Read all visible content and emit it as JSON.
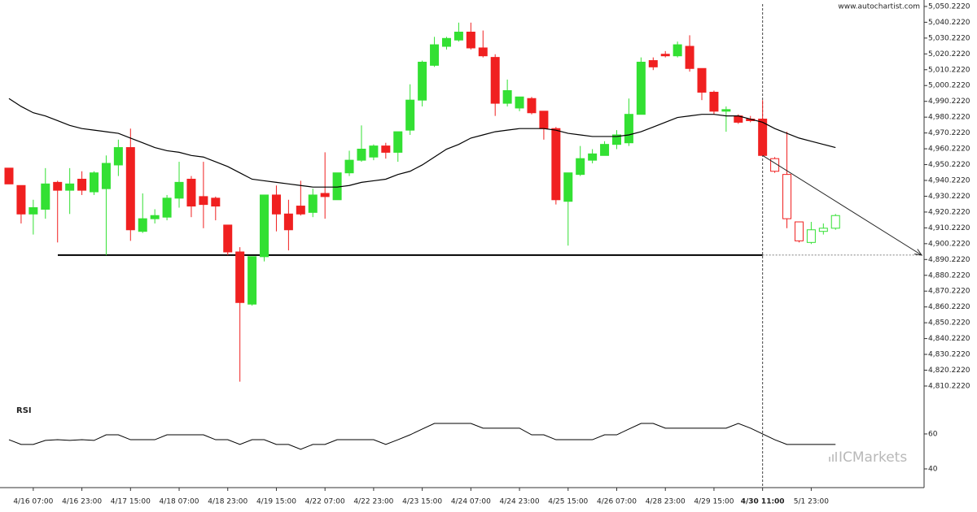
{
  "watermark": "www.autochartist.com",
  "logo": "ICMarkets",
  "chart_data": [
    {
      "type": "candlestick",
      "categories": [
        null,
        null,
        "4/16 07:00",
        null,
        null,
        null,
        "4/16 23:00",
        null,
        null,
        null,
        "4/17 15:00",
        null,
        null,
        null,
        "4/18 07:00",
        null,
        null,
        null,
        "4/18 23:00",
        null,
        null,
        null,
        "4/19 15:00",
        null,
        null,
        null,
        "4/22 07:00",
        null,
        null,
        null,
        "4/22 23:00",
        null,
        null,
        null,
        "4/23 15:00",
        null,
        null,
        null,
        "4/24 07:00",
        null,
        null,
        null,
        "4/24 23:00",
        null,
        null,
        null,
        "4/25 15:00",
        null,
        null,
        null,
        "4/26 07:00",
        null,
        null,
        null,
        "4/28 23:00",
        null,
        null,
        null,
        "4/29 15:00",
        null,
        null,
        null,
        "4/30 11:00",
        null,
        null,
        null,
        "5/1 23:00",
        null,
        null
      ],
      "open": [
        4948,
        4937,
        4919,
        4922,
        4939,
        4934,
        4941,
        4933,
        4935,
        4950,
        4961,
        4908,
        4916,
        4917,
        4929,
        4941,
        4930,
        4929,
        4912,
        4895,
        4862,
        4892,
        4931,
        4919,
        4924,
        4920,
        4932,
        4928,
        4945,
        4953,
        4955,
        4962,
        4958,
        4972,
        4991,
        5013,
        5025,
        5029,
        5034,
        5024,
        5018,
        4989,
        4986,
        4992,
        4984,
        4973,
        4927,
        4944,
        4953,
        4956,
        4963,
        4964,
        4982,
        5016,
        5020,
        5019,
        5025,
        5011,
        4996,
        4984,
        4981,
        4979,
        4979,
        4954,
        4944,
        4914,
        4901,
        4908,
        4910
      ],
      "high": [
        4948,
        4937,
        4928,
        4948,
        4940,
        4948,
        4946,
        4946,
        4956,
        4966,
        4973,
        4932,
        4922,
        4931,
        4952,
        4943,
        4952,
        4930,
        4912,
        4898,
        4892,
        4931,
        4937,
        4928,
        4940,
        4935,
        4958,
        4945,
        4959,
        4975,
        4963,
        4964,
        4971,
        5001,
        5016,
        5031,
        5031,
        5040,
        5040,
        5035,
        5020,
        5004,
        4993,
        4993,
        4984,
        4974,
        4945,
        4962,
        4960,
        4965,
        4972,
        4992,
        5018,
        5018,
        5022,
        5028,
        5032,
        5011,
        4997,
        4987,
        4982,
        4981,
        4991,
        4955,
        4971,
        4914,
        4914,
        4913,
        4919
      ],
      "low": [
        4938,
        4913,
        4906,
        4916,
        4901,
        4919,
        4931,
        4931,
        4893,
        4943,
        4902,
        4907,
        4913,
        4915,
        4923,
        4917,
        4910,
        4915,
        4893,
        4813,
        4861,
        4889,
        4908,
        4896,
        4918,
        4917,
        4916,
        4928,
        4943,
        4952,
        4953,
        4954,
        4952,
        4969,
        4987,
        5012,
        5023,
        5028,
        5023,
        5018,
        4981,
        4987,
        4984,
        4982,
        4966,
        4925,
        4899,
        4943,
        4951,
        4956,
        4960,
        4962,
        4982,
        5010,
        5018,
        5018,
        5009,
        4991,
        4982,
        4971,
        4976,
        4977,
        4956,
        4945,
        4910,
        4901,
        4900,
        4906,
        4909
      ],
      "close": [
        4938,
        4919,
        4923,
        4938,
        4934,
        4938,
        4934,
        4945,
        4951,
        4961,
        4909,
        4916,
        4918,
        4929,
        4939,
        4924,
        4925,
        4924,
        4895,
        4863,
        4892,
        4931,
        4919,
        4909,
        4919,
        4931,
        4930,
        4945,
        4953,
        4960,
        4962,
        4958,
        4971,
        4991,
        5015,
        5026,
        5030,
        5034,
        5024,
        5019,
        4989,
        4997,
        4993,
        4983,
        4973,
        4928,
        4945,
        4954,
        4957,
        4963,
        4969,
        4982,
        5015,
        5012,
        5019,
        5026,
        5011,
        4996,
        4984,
        4985,
        4977,
        4978,
        4956,
        4946,
        4916,
        4902,
        4909,
        4910,
        4918
      ],
      "moving_average": [
        4992,
        4987,
        4983,
        4981,
        4978,
        4975,
        4973,
        4972,
        4971,
        4970,
        4967,
        4964,
        4961,
        4959,
        4958,
        4956,
        4955,
        4952,
        4949,
        4945,
        4941,
        4940,
        4939,
        4938,
        4937,
        4936,
        4936,
        4936,
        4937,
        4939,
        4940,
        4941,
        4944,
        4946,
        4950,
        4955,
        4960,
        4963,
        4967,
        4969,
        4971,
        4972,
        4973,
        4973,
        4973,
        4972,
        4970,
        4969,
        4968,
        4968,
        4968,
        4969,
        4971,
        4974,
        4977,
        4980,
        4981,
        4982,
        4982,
        4981,
        4981,
        4979,
        4977,
        4973,
        4970,
        4967,
        4965,
        4963,
        4961
      ],
      "support_level": 4893,
      "hollow_from_category": "4/30 11:00",
      "up_color": "#33e033",
      "down_color": "#f02020",
      "line_color": "#000000",
      "ylim": [
        4802.5,
        5054.3
      ],
      "yticks": [
        {
          "value": 4810.222,
          "label": "4,810.2220"
        },
        {
          "value": 4820.222,
          "label": "4,820.2220"
        },
        {
          "value": 4830.222,
          "label": "4,830.2220"
        },
        {
          "value": 4840.222,
          "label": "4,840.2220"
        },
        {
          "value": 4850.222,
          "label": "4,850.2220"
        },
        {
          "value": 4860.222,
          "label": "4,860.2220"
        },
        {
          "value": 4870.222,
          "label": "4,870.2220"
        },
        {
          "value": 4880.222,
          "label": "4,880.2220"
        },
        {
          "value": 4890.222,
          "label": "4,890.2220"
        },
        {
          "value": 4900.222,
          "label": "4,900.2220"
        },
        {
          "value": 4910.222,
          "label": "4,910.2220"
        },
        {
          "value": 4920.222,
          "label": "4,920.2220"
        },
        {
          "value": 4930.222,
          "label": "4,930.2220"
        },
        {
          "value": 4940.222,
          "label": "4,940.2220"
        },
        {
          "value": 4950.222,
          "label": "4,950.2220"
        },
        {
          "value": 4960.222,
          "label": "4,960.2220"
        },
        {
          "value": 4970.222,
          "label": "4,970.2220"
        },
        {
          "value": 4980.222,
          "label": "4,980.2220"
        },
        {
          "value": 4990.222,
          "label": "4,990.2220"
        },
        {
          "value": 5000.222,
          "label": "5,000.2220"
        },
        {
          "value": 5010.222,
          "label": "5,010.2220"
        },
        {
          "value": 5020.222,
          "label": "5,020.2220"
        },
        {
          "value": 5030.222,
          "label": "5,030.2220"
        },
        {
          "value": 5040.222,
          "label": "5,040.2220"
        },
        {
          "value": 5050.222,
          "label": "5,050.2220"
        }
      ]
    },
    {
      "type": "line",
      "title": "RSI",
      "color": "#000000",
      "values": [
        56.7,
        54.0,
        54.0,
        56.3,
        56.7,
        56.3,
        56.7,
        56.3,
        59.5,
        59.5,
        56.7,
        56.7,
        56.7,
        59.5,
        59.5,
        59.5,
        59.5,
        56.7,
        56.7,
        54.0,
        56.7,
        56.7,
        54.0,
        54.0,
        51.2,
        54.0,
        54.0,
        56.7,
        56.7,
        56.7,
        56.7,
        54.0,
        56.7,
        59.5,
        62.8,
        66.0,
        66.0,
        66.0,
        66.0,
        63.3,
        63.3,
        63.3,
        63.3,
        59.5,
        59.5,
        56.7,
        56.7,
        56.7,
        56.7,
        59.5,
        59.5,
        62.8,
        66.0,
        66.0,
        63.3,
        63.3,
        63.3,
        63.3,
        63.3,
        63.3,
        66.0,
        63.3,
        60.0,
        56.7,
        54.0,
        54.0,
        54.0,
        54.0,
        54.0
      ],
      "ylim": [
        29.3,
        78.1
      ],
      "yticks": [
        40,
        60
      ]
    }
  ]
}
